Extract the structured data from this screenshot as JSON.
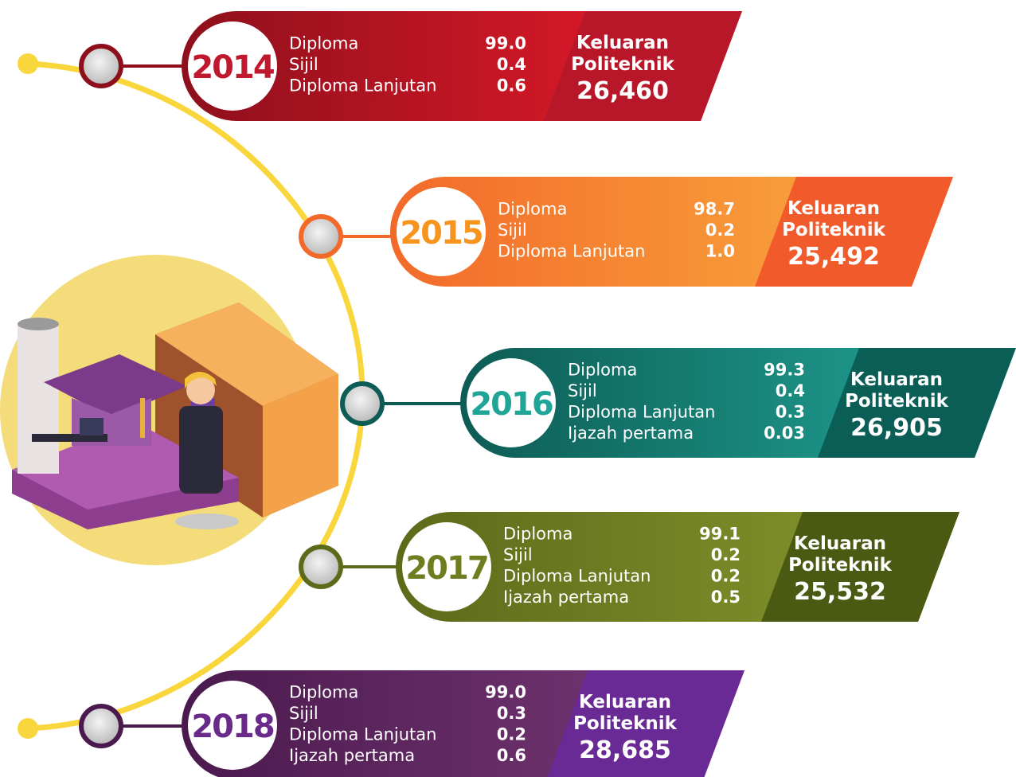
{
  "items": [
    {
      "year": "2014",
      "rows": [
        {
          "label": "Diploma",
          "value": "99.0"
        },
        {
          "label": "Sijil",
          "value": "0.4"
        },
        {
          "label": "Diploma Lanjutan",
          "value": "0.6"
        }
      ],
      "heading": "Keluaran Politeknik",
      "total": "26,460",
      "colors": {
        "from": "#8e0f1c",
        "to": "#ef1c2a",
        "side": "#b8172a",
        "year": "#c0182c"
      }
    },
    {
      "year": "2015",
      "rows": [
        {
          "label": "Diploma",
          "value": "98.7"
        },
        {
          "label": "Sijil",
          "value": "0.2"
        },
        {
          "label": "Diploma Lanjutan",
          "value": "1.0"
        }
      ],
      "heading": "Keluaran Politeknik",
      "total": "25,492",
      "colors": {
        "from": "#f26a2a",
        "to": "#fbb040",
        "side": "#f15a2b",
        "year": "#f7941d"
      }
    },
    {
      "year": "2016",
      "rows": [
        {
          "label": "Diploma",
          "value": "99.3"
        },
        {
          "label": "Sijil",
          "value": "0.4"
        },
        {
          "label": "Diploma Lanjutan",
          "value": "0.3"
        },
        {
          "label": "Ijazah pertama",
          "value": "0.03"
        }
      ],
      "heading": "Keluaran Politeknik",
      "total": "26,905",
      "colors": {
        "from": "#0d5c55",
        "to": "#23a99b",
        "side": "#0b5e56",
        "year": "#1fa595"
      }
    },
    {
      "year": "2017",
      "rows": [
        {
          "label": "Diploma",
          "value": "99.1"
        },
        {
          "label": "Sijil",
          "value": "0.2"
        },
        {
          "label": "Diploma Lanjutan",
          "value": "0.2"
        },
        {
          "label": "Ijazah pertama",
          "value": "0.5"
        }
      ],
      "heading": "Keluaran Politeknik",
      "total": "25,532",
      "colors": {
        "from": "#5c6a1a",
        "to": "#8a9a2e",
        "side": "#4b5a12",
        "year": "#6d7d20"
      }
    },
    {
      "year": "2018",
      "rows": [
        {
          "label": "Diploma",
          "value": "99.0"
        },
        {
          "label": "Sijil",
          "value": "0.3"
        },
        {
          "label": "Diploma Lanjutan",
          "value": "0.2"
        },
        {
          "label": "Ijazah pertama",
          "value": "0.6"
        }
      ],
      "heading": "Keluaran Politeknik",
      "total": "28,685",
      "colors": {
        "from": "#4a1a4e",
        "to": "#7a3a78",
        "side": "#6a2a96",
        "year": "#6a2a8a"
      }
    }
  ]
}
